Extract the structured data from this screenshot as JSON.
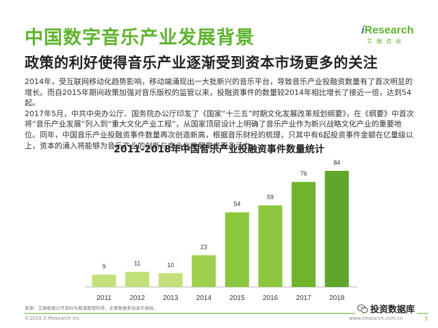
{
  "header": {
    "title": "中国数字音乐产业发展背景",
    "subtitle": "政策的利好使得音乐产业逐渐受到资本市场更多的关注"
  },
  "logo": {
    "brand_i": "i",
    "brand_rest": "Research",
    "tagline": "艾瑞咨询"
  },
  "body": {
    "paragraphs": [
      "2014年，受互联网移动化趋势影响，移动端涌现出一大批新兴的音乐平台，导致音乐产业投融资数量有了首次明显的增长。而自2015年期间政策加强对音乐版权的监管以来，投融资事件的数量较2014年相比增长了接近一倍，达到54起。",
      "2017年5月，中共中央办公厅、国务院办公厅印发了《国家“十三五”时期文化发展改革规划纲要》，在《纲要》中首次将“音乐产业发展”列入到“重大文化产业工程”，从国家顶层设计上明确了音乐产业作为新兴战略文化产业的重要地位。同年，中国音乐产业投融资事件数量再次创造新高，根据音乐财经的梳理，只其中有6起投资事件金额在亿量级以上，资本的涌入将能够为音乐产业的创新与商业化发展带来更多活力。"
    ]
  },
  "chart_data": {
    "type": "bar",
    "title": "2011-2018年中国音乐产业投融资事件数量统计",
    "categories": [
      "2011",
      "2012",
      "2013",
      "2014",
      "2015",
      "2016",
      "2017",
      "2018"
    ],
    "values": [
      9,
      11,
      10,
      23,
      54,
      59,
      76,
      84
    ],
    "colors": [
      "#c2e07a",
      "#c2e07a",
      "#c2e07a",
      "#9ed04d",
      "#8cc63f",
      "#8cc63f",
      "#6fb42c",
      "#5fa62a"
    ],
    "axis_color": "#b5b5b5",
    "grid": false,
    "xlabel": "",
    "ylabel": ""
  },
  "footer": {
    "source": "来源：艾瑞根据公开资料与报道整理所得，主要数据来自音乐财经。",
    "copyright": "©2019.3 iResearch Inc",
    "website": "www.iresearch.com.cn",
    "page": "7",
    "watermark": "投资数据库",
    "watermark_icon": "wechat-icon"
  }
}
